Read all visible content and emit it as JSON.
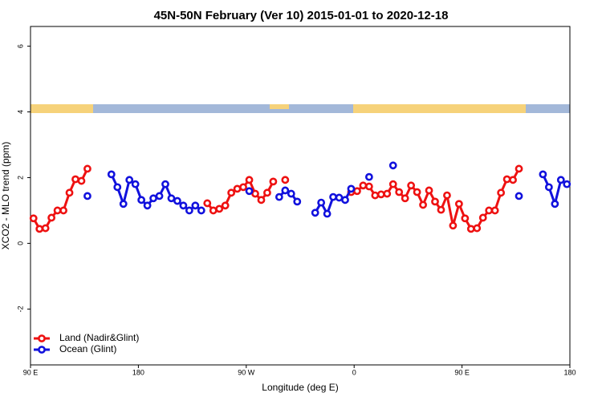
{
  "chart_data": {
    "type": "line",
    "title": "45N-50N February (Ver 10)   2015-01-01 to 2020-12-18",
    "x_label": "Longitude (deg E)",
    "y_label": "XCO2 - MLO trend (ppm)",
    "x": [
      -267.5,
      -262.5,
      -257.5,
      -252.5,
      -247.5,
      -242.5,
      -237.5,
      -232.5,
      -227.5,
      -222.5,
      -217.5,
      -212.5,
      -207.5,
      -202.5,
      -197.5,
      -192.5,
      -187.5,
      -182.5,
      -177.5,
      -172.5,
      -167.5,
      -162.5,
      -157.5,
      -152.5,
      -147.5,
      -142.5,
      -137.5,
      -132.5,
      -127.5,
      -122.5,
      -117.5,
      -112.5,
      -107.5,
      -102.5,
      -97.5,
      -92.5,
      -87.5,
      -82.5,
      -77.5,
      -72.5,
      -67.5,
      -62.5,
      -57.5,
      -52.5,
      -47.5,
      -42.5,
      -37.5,
      -32.5,
      -27.5,
      -22.5,
      -17.5,
      -12.5,
      -7.5,
      -2.5,
      2.5,
      7.5,
      12.5,
      17.5,
      22.5,
      27.5,
      32.5,
      37.5,
      42.5,
      47.5,
      52.5,
      57.5,
      62.5,
      67.5,
      72.5,
      77.5,
      82.5,
      87.5,
      92.5,
      97.5,
      102.5,
      107.5,
      112.5,
      117.5,
      122.5,
      127.5,
      132.5,
      137.5,
      142.5,
      147.5,
      152.5,
      157.5,
      162.5,
      167.5,
      172.5,
      177.5
    ],
    "series": [
      {
        "name": "Land (Nadir&Glint)",
        "color": "#ee1111",
        "values": [
          0.76,
          0.44,
          0.46,
          0.78,
          1.0,
          1.0,
          1.54,
          1.95,
          1.9,
          2.27,
          null,
          null,
          null,
          null,
          null,
          null,
          null,
          null,
          null,
          null,
          null,
          null,
          null,
          null,
          null,
          null,
          null,
          null,
          null,
          1.22,
          1.0,
          1.05,
          1.15,
          1.54,
          1.66,
          1.71,
          1.93,
          1.51,
          1.32,
          1.54,
          1.88,
          null,
          1.93,
          null,
          null,
          null,
          null,
          null,
          null,
          null,
          null,
          null,
          null,
          1.56,
          1.59,
          1.76,
          1.73,
          1.46,
          1.49,
          1.51,
          1.8,
          1.56,
          1.37,
          1.76,
          1.56,
          1.17,
          1.61,
          1.27,
          1.02,
          1.46,
          0.54,
          1.2,
          0.76,
          0.44,
          0.46,
          0.78,
          1.0,
          1.0,
          1.54,
          1.95,
          1.93,
          2.27,
          null,
          null,
          null,
          null,
          null,
          null,
          null,
          null
        ]
      },
      {
        "name": "Ocean (Glint)",
        "color": "#1111dd",
        "values": [
          null,
          null,
          null,
          null,
          null,
          null,
          null,
          null,
          null,
          1.44,
          null,
          null,
          null,
          2.1,
          1.71,
          1.2,
          1.93,
          1.8,
          1.32,
          1.15,
          1.37,
          1.44,
          1.8,
          1.37,
          1.29,
          1.15,
          1.0,
          1.15,
          1.0,
          null,
          null,
          null,
          null,
          null,
          null,
          null,
          1.59,
          null,
          null,
          null,
          null,
          1.41,
          1.61,
          1.51,
          1.27,
          null,
          null,
          0.93,
          1.24,
          0.9,
          1.41,
          1.39,
          1.32,
          1.66,
          null,
          null,
          2.02,
          null,
          null,
          null,
          2.37,
          null,
          null,
          null,
          null,
          null,
          null,
          null,
          null,
          null,
          null,
          null,
          null,
          null,
          null,
          null,
          null,
          null,
          null,
          null,
          null,
          1.44,
          null,
          null,
          null,
          2.1,
          1.71,
          1.2,
          1.93,
          1.8
        ]
      }
    ],
    "xlim": [
      -270,
      180
    ],
    "xticks": [
      {
        "value": -270,
        "label": "90 E"
      },
      {
        "value": -180,
        "label": "180"
      },
      {
        "value": -90,
        "label": "90 W"
      },
      0,
      {
        "value": 90,
        "label": "90 E"
      },
      180
    ],
    "ylim": [
      -3.7,
      6.6
    ],
    "yticks": [
      -2,
      0,
      2,
      4,
      6
    ],
    "legend": "bottomleft"
  }
}
